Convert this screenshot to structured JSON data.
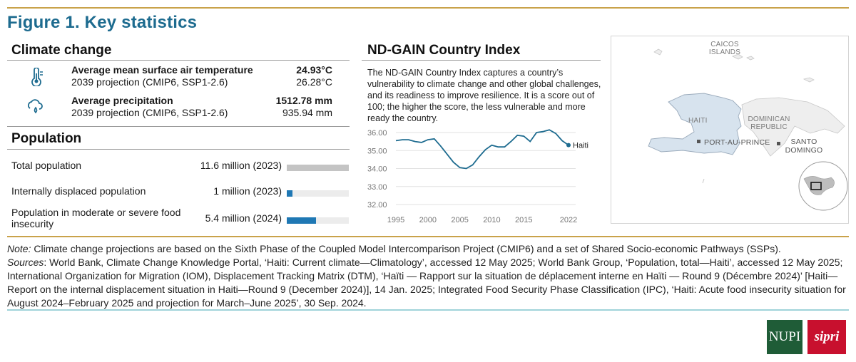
{
  "figure_title": "Figure 1. Key statistics",
  "colors": {
    "accent": "#1d6b8f",
    "gold_rule": "#c9a24a",
    "teal_rule": "#9fd3da",
    "bar_blue": "#1f78b4",
    "bar_gray": "#c4c4c4",
    "land": "#d7e3ee"
  },
  "climate": {
    "title": "Climate change",
    "items": [
      {
        "icon": "thermometer-icon",
        "label": "Average mean surface air temperature",
        "sublabel": "2039 projection (CMIP6, SSP1-2.6)",
        "value": "24.93°C",
        "subvalue": "26.28°C"
      },
      {
        "icon": "precipitation-icon",
        "label": "Average precipitation",
        "sublabel": "2039 projection (CMIP6, SSP1-2.6)",
        "value": "1512.78 mm",
        "subvalue": "935.94 mm"
      }
    ]
  },
  "population": {
    "title": "Population",
    "items": [
      {
        "label": "Total population",
        "value": "11.6 million (2023)",
        "fraction": 1.0,
        "color": "gray"
      },
      {
        "label": "Internally displaced population",
        "value": "1 million (2023)",
        "fraction": 0.09,
        "color": "blue"
      },
      {
        "label": "Population in moderate or severe food insecurity",
        "value": "5.4 million (2024)",
        "fraction": 0.47,
        "color": "blue"
      }
    ]
  },
  "ndgain": {
    "title": "ND-GAIN Country Index",
    "description": "The ND-GAIN Country Index captures a country’s vulnerability to climate change and other global challenges, and its readiness to improve resilience. It is a score out of 100; the higher the score, the less vulnerable and more ready the country."
  },
  "chart_data": {
    "type": "line",
    "x": [
      1995,
      1996,
      1997,
      1998,
      1999,
      2000,
      2001,
      2002,
      2003,
      2004,
      2005,
      2006,
      2007,
      2008,
      2009,
      2010,
      2011,
      2012,
      2013,
      2014,
      2015,
      2016,
      2017,
      2018,
      2019,
      2020,
      2021,
      2022
    ],
    "series": [
      {
        "name": "Haiti",
        "values": [
          35.55,
          35.6,
          35.6,
          35.5,
          35.45,
          35.6,
          35.65,
          35.25,
          34.8,
          34.35,
          34.05,
          34.0,
          34.2,
          34.65,
          35.05,
          35.3,
          35.2,
          35.2,
          35.5,
          35.85,
          35.8,
          35.5,
          36.0,
          36.05,
          36.15,
          35.95,
          35.55,
          35.3
        ]
      }
    ],
    "xticks": [
      "1995",
      "2000",
      "2005",
      "2010",
      "2015",
      "2022"
    ],
    "yticks": [
      "32.00",
      "33.00",
      "34.00",
      "35.00",
      "36.00"
    ],
    "ylim": [
      32,
      36
    ],
    "grid": true,
    "end_label": "Haiti"
  },
  "map": {
    "labels": {
      "caicos": "CAICOS ISLANDS",
      "haiti": "HAITI",
      "dominican": "DOMINICAN REPUBLIC",
      "port": "PORT-AU-PRINCE",
      "santo": "SANTO DOMINGO"
    }
  },
  "notes": {
    "note_label": "Note:",
    "note_text": " Climate change projections are based on the Sixth Phase of the Coupled Model Intercomparison Project (CMIP6) and a set of Shared Socio-economic Pathways (SSPs).",
    "sources_label": "Sources",
    "sources_text": ": World Bank, Climate Change Knowledge Portal, ‘Haiti: Current climate—Climatology’, accessed 12 May 2025; World Bank Group, ‘Population, total—Haiti’, accessed 12 May 2025; International Organization for Migration (IOM), Displacement Tracking Matrix (DTM), ‘Haïti — Rapport sur la situation de déplacement interne en Haïti — Round 9 (Décembre 2024)’ [Haiti—Report on the internal displacement situation in Haiti—Round 9 (December 2024)], 14 Jan. 2025; Integrated Food Security Phase Classification (IPC), ‘Haiti: Acute food insecurity situation for August 2024–February 2025 and projection for March–June 2025’, 30 Sep. 2024."
  },
  "logos": {
    "nupi": "NUPI",
    "sipri": "sipri"
  }
}
